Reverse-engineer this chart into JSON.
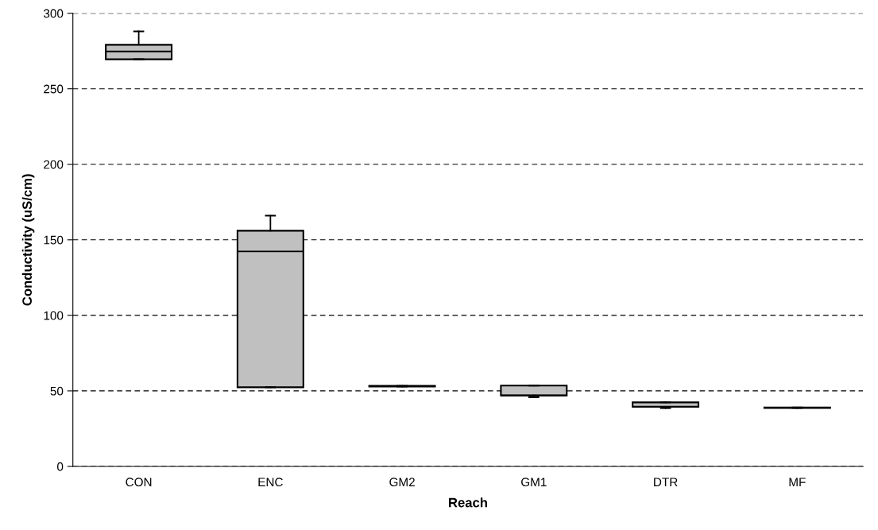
{
  "chart_data": {
    "type": "box",
    "xlabel": "Reach",
    "ylabel": "Conductivity (uS/cm)",
    "categories": [
      "CON",
      "ENC",
      "GM2",
      "GM1",
      "DTR",
      "MF"
    ],
    "boxes": [
      {
        "low": 269.5,
        "q1": 269.5,
        "median": 274.7,
        "q3": 279.1,
        "high": 288
      },
      {
        "low": 52.4,
        "q1": 52.4,
        "median": 142.3,
        "q3": 156,
        "high": 166
      },
      {
        "low": 52.9,
        "q1": 52.9,
        "median": 53,
        "q3": 53.3,
        "high": 53.3
      },
      {
        "low": 45.8,
        "q1": 47,
        "median": 47,
        "q3": 53.5,
        "high": 53.5
      },
      {
        "low": 38.6,
        "q1": 39.5,
        "median": 39.5,
        "q3": 42.4,
        "high": 42.4
      },
      {
        "low": 38.7,
        "q1": 38.7,
        "median": 38.8,
        "q3": 39,
        "high": 39
      }
    ],
    "color": "#c0c0c0",
    "ylim": [
      0,
      300
    ],
    "yticks": [
      0,
      50,
      100,
      150,
      200,
      250,
      300
    ],
    "grid": "y"
  }
}
